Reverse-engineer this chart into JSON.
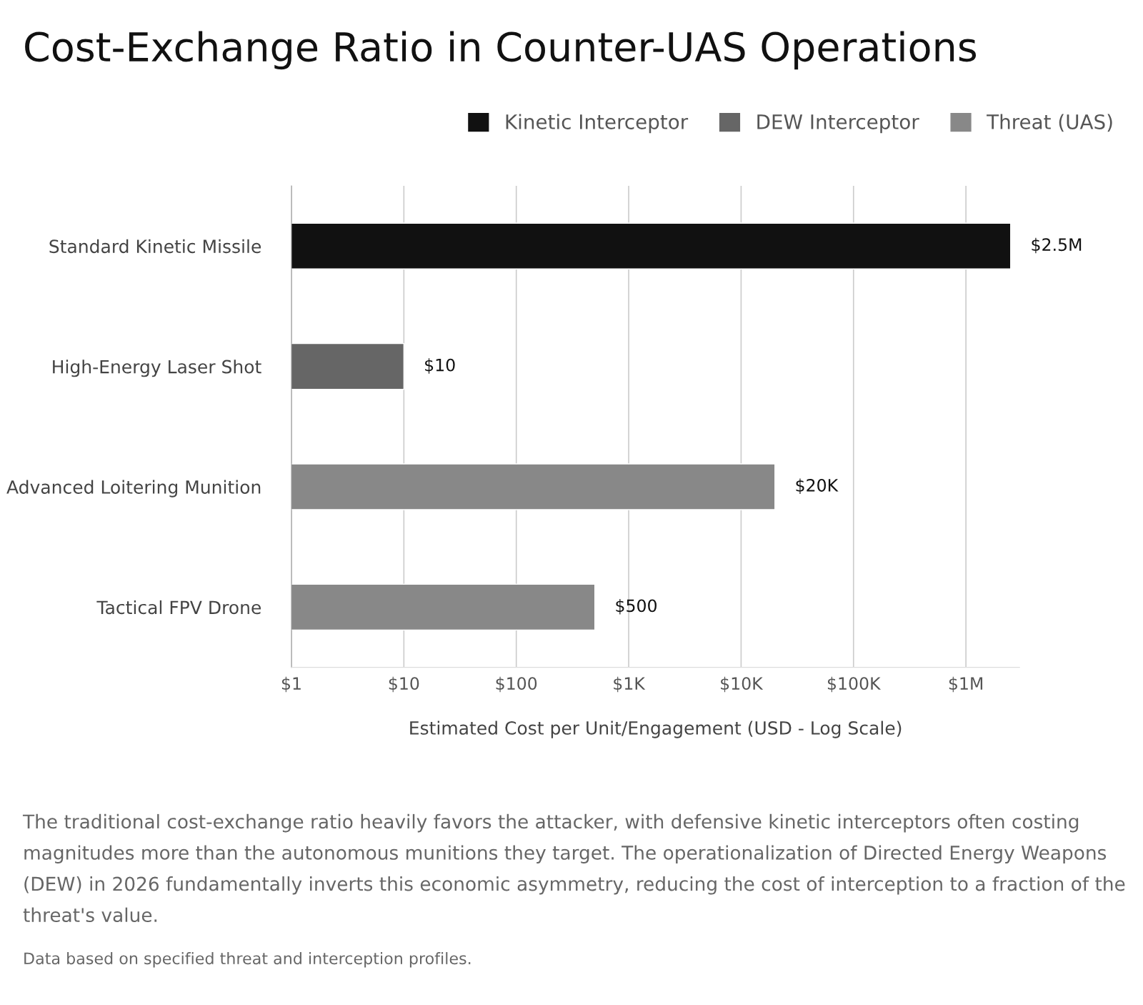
{
  "chart_data": {
    "type": "bar",
    "orientation": "horizontal",
    "title": "Cost-Exchange Ratio in Counter-UAS Operations",
    "xlabel": "Estimated Cost per Unit/Engagement (USD - Log Scale)",
    "categories": [
      "Standard Kinetic Missile",
      "High-Energy Laser Shot",
      "Advanced Loitering Munition",
      "Tactical FPV Drone"
    ],
    "series": [
      {
        "name": "Kinetic Interceptor",
        "color": "#111111",
        "values": [
          2500000,
          null,
          null,
          null
        ],
        "value_labels": [
          "$2.5M",
          null,
          null,
          null
        ]
      },
      {
        "name": "DEW Interceptor",
        "color": "#666666",
        "values": [
          null,
          10,
          null,
          null
        ],
        "value_labels": [
          null,
          "$10",
          null,
          null
        ]
      },
      {
        "name": "Threat (UAS)",
        "color": "#888888",
        "values": [
          null,
          null,
          20000,
          500
        ],
        "value_labels": [
          null,
          null,
          "$20K",
          "$500"
        ]
      }
    ],
    "log": "x",
    "xlim": [
      1,
      3000000
    ],
    "xticks": [
      {
        "value": 1,
        "label": "$1"
      },
      {
        "value": 10,
        "label": "$10"
      },
      {
        "value": 100,
        "label": "$100"
      },
      {
        "value": 1000,
        "label": "$1K"
      },
      {
        "value": 10000,
        "label": "$10K"
      },
      {
        "value": 100000,
        "label": "$100K"
      },
      {
        "value": 1000000,
        "label": "$1M"
      }
    ],
    "grid": "x",
    "legend": "top right",
    "annotations": [
      "The traditional cost-exchange ratio heavily favors the attacker, with defensive kinetic interceptors often costing magnitudes more than the autonomous munitions they target. The operationalization of Directed Energy Weapons (DEW) in 2026 fundamentally inverts this economic asymmetry, reducing the cost of interception to a fraction of the threat's value.",
      "Data based on specified threat and interception profiles."
    ]
  }
}
